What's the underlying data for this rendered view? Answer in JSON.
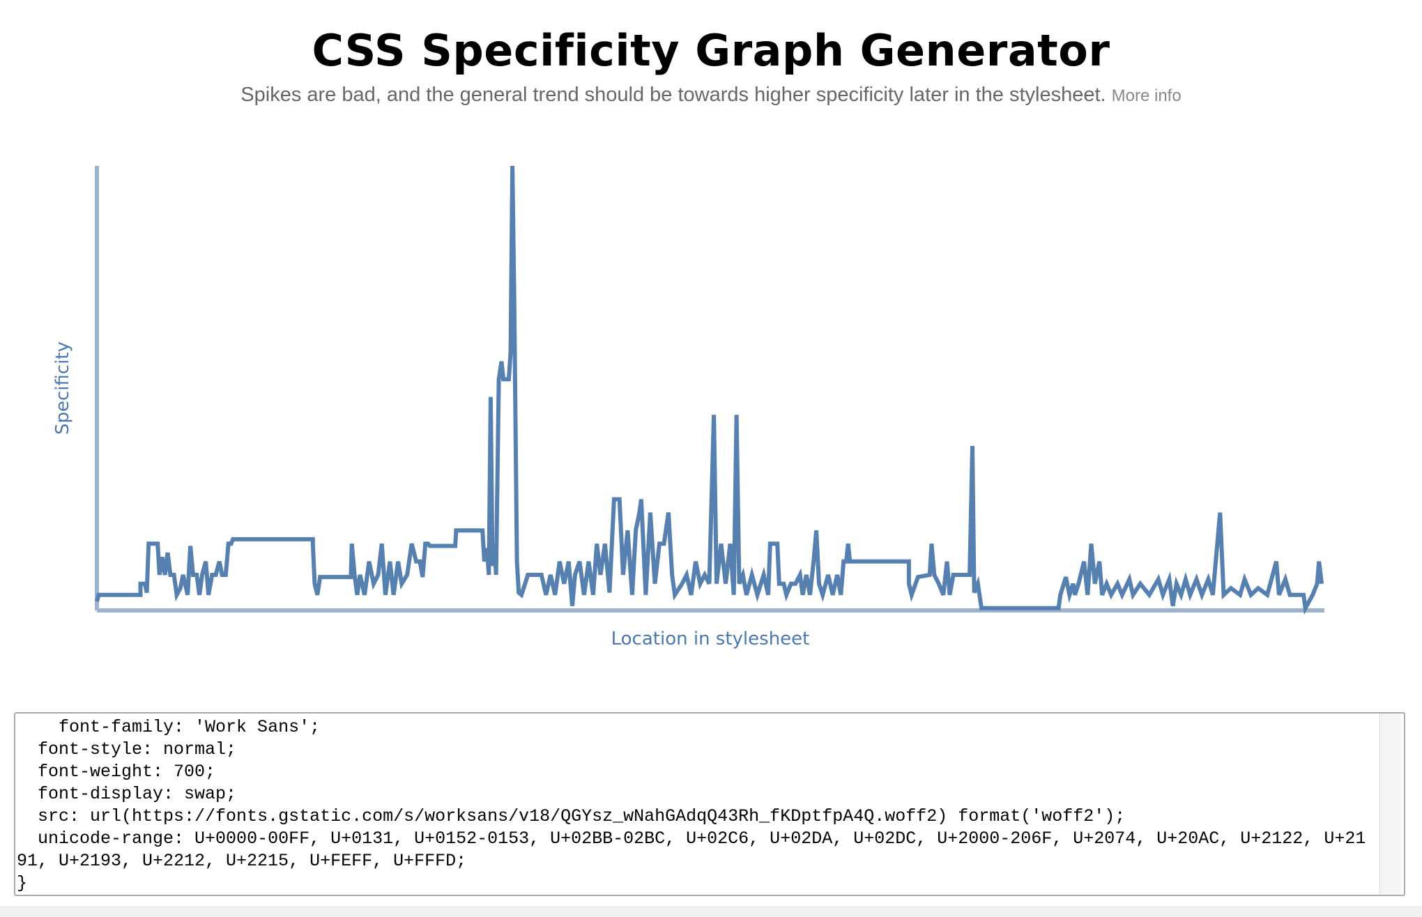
{
  "header": {
    "title": "CSS Specificity Graph Generator",
    "subtitle": "Spikes are bad, and the general trend should be towards higher specificity later in the stylesheet.",
    "link": "More info"
  },
  "chart_data": {
    "type": "line",
    "y_label": "Specificity",
    "x_label": "Location in stylesheet",
    "color": "#5580b0",
    "axis_color": "#9cb4d0",
    "xlim": [
      0,
      1353
    ],
    "ylim": [
      0,
      100
    ],
    "x": [
      0,
      2,
      48,
      48,
      53,
      55,
      57,
      67,
      69,
      72,
      75,
      78,
      81,
      85,
      88,
      92,
      95,
      100,
      103,
      106,
      110,
      113,
      116,
      120,
      123,
      127,
      131,
      135,
      138,
      142,
      145,
      148,
      150,
      238,
      238,
      240,
      243,
      246,
      280,
      281,
      284,
      287,
      290,
      295,
      300,
      305,
      310,
      314,
      318,
      323,
      327,
      332,
      336,
      342,
      347,
      352,
      356,
      359,
      362,
      365,
      367,
      395,
      396,
      425,
      427,
      430,
      432,
      434,
      436,
      438,
      440,
      443,
      446,
      448,
      454,
      456,
      458,
      460,
      463,
      465,
      468,
      472,
      475,
      490,
      495,
      500,
      505,
      510,
      515,
      520,
      524,
      527,
      532,
      537,
      542,
      547,
      551,
      555,
      560,
      565,
      570,
      576,
      580,
      585,
      590,
      594,
      598,
      600,
      605,
      610,
      615,
      620,
      625,
      630,
      634,
      637,
      645,
      650,
      655,
      660,
      665,
      670,
      675,
      680,
      683,
      688,
      693,
      698,
      702,
      705,
      708,
      712,
      716,
      722,
      728,
      735,
      740,
      742,
      750,
      752,
      757,
      760,
      765,
      770,
      775,
      778,
      782,
      786,
      790,
      793,
      796,
      800,
      806,
      811,
      816,
      820,
      823,
      826,
      828,
      830,
      895,
      895,
      898,
      905,
      918,
      920,
      923,
      928,
      933,
      937,
      940,
      944,
      962,
      965,
      967,
      971,
      975,
      1060,
      1062,
      1068,
      1072,
      1076,
      1078,
      1082,
      1088,
      1092,
      1096,
      1100,
      1105,
      1108,
      1113,
      1118,
      1125,
      1130,
      1138,
      1142,
      1150,
      1160,
      1170,
      1175,
      1182,
      1186,
      1190,
      1195,
      1200,
      1205,
      1212,
      1218,
      1225,
      1230,
      1238,
      1242,
      1250,
      1260,
      1265,
      1272,
      1280,
      1290,
      1300,
      1303,
      1310,
      1315,
      1330,
      1332,
      1340,
      1345,
      1347,
      1350
    ],
    "values": [
      2,
      3.5,
      3.5,
      6,
      6,
      4,
      15,
      15,
      8,
      12,
      8,
      13,
      8,
      8,
      3.5,
      5,
      8,
      3.5,
      14.5,
      8,
      8,
      3.5,
      8,
      11,
      3.5,
      8,
      8,
      11,
      8,
      8,
      15,
      15,
      16,
      16,
      15,
      6,
      3.5,
      7.5,
      7.5,
      15,
      8,
      3.5,
      8,
      3.5,
      11,
      6,
      8,
      15,
      3.5,
      11,
      3.5,
      11,
      6,
      8,
      15,
      11,
      11,
      7.5,
      15,
      15,
      14.5,
      14.5,
      18,
      18,
      11,
      14,
      8,
      48,
      10,
      15,
      8,
      52,
      56,
      52,
      52,
      58,
      100,
      70,
      11,
      4,
      3.5,
      6,
      8,
      8,
      3.5,
      8,
      3.5,
      11,
      6,
      11,
      1,
      8,
      11,
      3.5,
      11,
      3.5,
      15,
      8,
      15,
      4,
      25,
      25,
      8,
      18,
      3.5,
      18,
      22,
      25,
      3.5,
      22,
      6,
      15,
      15,
      22,
      8,
      3.5,
      6,
      8,
      3.5,
      11,
      6,
      8,
      6,
      44,
      6,
      15,
      6,
      15,
      3.5,
      44,
      6,
      8,
      3.5,
      8,
      3.5,
      8,
      3.5,
      15,
      15,
      6,
      6,
      3.5,
      6,
      6,
      8,
      3.5,
      8,
      3.5,
      11,
      18,
      6,
      3.5,
      8,
      3.5,
      8,
      3.5,
      11,
      11,
      15,
      11,
      11,
      6,
      3.5,
      7.5,
      8,
      15,
      8,
      6,
      3.5,
      11,
      3.5,
      8,
      8,
      37,
      4,
      6,
      0.5,
      0.5,
      3.5,
      7.5,
      3.5,
      6,
      3.5,
      6,
      11,
      3.5,
      15,
      6,
      11,
      3.5,
      6,
      3.5,
      6,
      3.5,
      7,
      3.5,
      6,
      3.5,
      7,
      3.5,
      7,
      1,
      6,
      3.5,
      7,
      3.5,
      7,
      3.5,
      7,
      3.5,
      22,
      3.5,
      5,
      3.5,
      7,
      3.5,
      5,
      3.5,
      11,
      3.5,
      7,
      3.5,
      3.5,
      0.5,
      3.5,
      6,
      11,
      6
    ]
  },
  "code": {
    "lines": [
      "    font-family: 'Work Sans';",
      "  font-style: normal;",
      "  font-weight: 700;",
      "  font-display: swap;",
      "  src: url(https://fonts.gstatic.com/s/worksans/v18/QGYsz_wNahGAdqQ43Rh_fKDptfpA4Q.woff2) format('woff2');",
      "  unicode-range: U+0000-00FF, U+0131, U+0152-0153, U+02BB-02BC, U+02C6, U+02DA, U+02DC, U+2000-206F, U+2074, U+20AC, U+2122, U+2191, U+2193, U+2212, U+2215, U+FEFF, U+FFFD;",
      "}"
    ]
  }
}
